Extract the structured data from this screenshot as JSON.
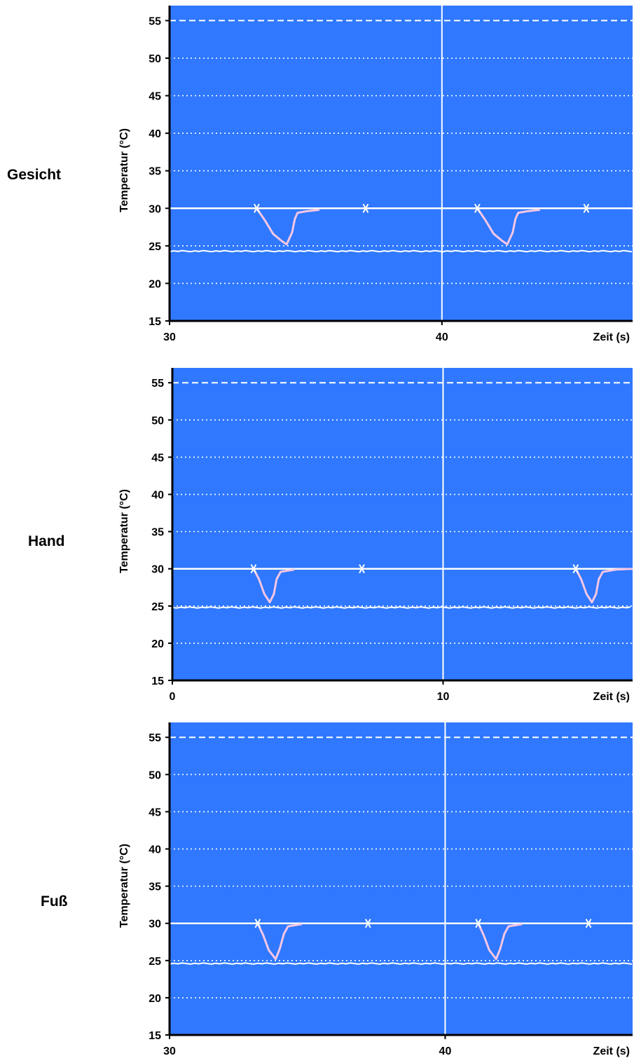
{
  "colors": {
    "plot_bg": "#2f78ff",
    "grid": "#ffffff",
    "baseline": "#ffffff",
    "trace": "#f4c6e4",
    "axis": "#000000",
    "marker": "#ffffff"
  },
  "chart_data": [
    {
      "type": "line",
      "row_label": "Gesicht",
      "ylabel": "Temperatur (°C)",
      "xlabel": "Zeit (s)",
      "ylim": [
        15,
        57
      ],
      "xlim": [
        30,
        47
      ],
      "x_ticks": [
        30,
        40
      ],
      "y_ticks": [
        15,
        20,
        25,
        30,
        35,
        40,
        45,
        50,
        55
      ],
      "grid": "dotted horizontal every 5 °C; dashed line at 55 °C",
      "vline_x": 40,
      "baseline_temp": 30,
      "room_temp": 24.3,
      "markers": [
        {
          "x": 33.2,
          "y": 30
        },
        {
          "x": 37.2,
          "y": 30
        },
        {
          "x": 41.3,
          "y": 30
        },
        {
          "x": 45.3,
          "y": 30
        }
      ],
      "series": [
        {
          "values": [
            [
              33.2,
              30
            ],
            [
              33.5,
              28.4
            ],
            [
              33.8,
              26.6
            ],
            [
              34.1,
              25.7
            ],
            [
              34.3,
              25.2
            ],
            [
              34.5,
              26.8
            ],
            [
              34.6,
              28.6
            ],
            [
              34.7,
              29.4
            ],
            [
              35.0,
              29.6
            ],
            [
              35.5,
              29.8
            ]
          ]
        },
        {
          "values": [
            [
              41.3,
              30
            ],
            [
              41.6,
              28.4
            ],
            [
              41.9,
              26.6
            ],
            [
              42.2,
              25.7
            ],
            [
              42.4,
              25.2
            ],
            [
              42.6,
              26.8
            ],
            [
              42.7,
              28.6
            ],
            [
              42.8,
              29.4
            ],
            [
              43.1,
              29.6
            ],
            [
              43.6,
              29.8
            ]
          ]
        }
      ]
    },
    {
      "type": "line",
      "row_label": "Hand",
      "ylabel": "Temperatur (°C)",
      "xlabel": "Zeit (s)",
      "ylim": [
        15,
        57
      ],
      "xlim": [
        0,
        17
      ],
      "x_ticks": [
        0,
        10
      ],
      "y_ticks": [
        15,
        20,
        25,
        30,
        35,
        40,
        45,
        50,
        55
      ],
      "grid": "dotted horizontal every 5 °C; dashed line at 55 °C",
      "vline_x": 10,
      "baseline_temp": 30,
      "room_temp": 24.8,
      "markers": [
        {
          "x": 3.0,
          "y": 30
        },
        {
          "x": 7.0,
          "y": 30
        },
        {
          "x": 14.9,
          "y": 30
        }
      ],
      "series": [
        {
          "values": [
            [
              3.0,
              30
            ],
            [
              3.2,
              28.6
            ],
            [
              3.4,
              26.6
            ],
            [
              3.6,
              25.5
            ],
            [
              3.75,
              26.6
            ],
            [
              3.85,
              28.6
            ],
            [
              4.0,
              29.6
            ],
            [
              4.5,
              29.9
            ]
          ]
        },
        {
          "values": [
            [
              14.9,
              30
            ],
            [
              15.1,
              28.6
            ],
            [
              15.3,
              26.6
            ],
            [
              15.5,
              25.5
            ],
            [
              15.65,
              26.6
            ],
            [
              15.75,
              28.6
            ],
            [
              15.9,
              29.6
            ],
            [
              16.4,
              29.9
            ],
            [
              17.0,
              30
            ]
          ]
        }
      ]
    },
    {
      "type": "line",
      "row_label": "Fuß",
      "ylabel": "Temperatur (°C)",
      "xlabel": "Zeit (s)",
      "ylim": [
        15,
        57
      ],
      "xlim": [
        30,
        46.8
      ],
      "x_ticks": [
        30,
        40
      ],
      "y_ticks": [
        15,
        20,
        25,
        30,
        35,
        40,
        45,
        50,
        55
      ],
      "grid": "dotted horizontal every 5 °C; dashed line at 55 °C",
      "vline_x": 40,
      "baseline_temp": 30,
      "room_temp": 24.6,
      "markers": [
        {
          "x": 33.2,
          "y": 30
        },
        {
          "x": 37.2,
          "y": 30
        },
        {
          "x": 41.2,
          "y": 30
        },
        {
          "x": 45.2,
          "y": 30
        }
      ],
      "series": [
        {
          "values": [
            [
              33.2,
              30
            ],
            [
              33.4,
              28.4
            ],
            [
              33.6,
              26.4
            ],
            [
              33.85,
              25.2
            ],
            [
              34.0,
              26.6
            ],
            [
              34.15,
              28.6
            ],
            [
              34.3,
              29.6
            ],
            [
              34.8,
              29.9
            ]
          ]
        },
        {
          "values": [
            [
              41.2,
              30
            ],
            [
              41.4,
              28.4
            ],
            [
              41.6,
              26.4
            ],
            [
              41.85,
              25.2
            ],
            [
              42.0,
              26.6
            ],
            [
              42.15,
              28.6
            ],
            [
              42.3,
              29.6
            ],
            [
              42.8,
              29.9
            ]
          ]
        }
      ]
    }
  ]
}
